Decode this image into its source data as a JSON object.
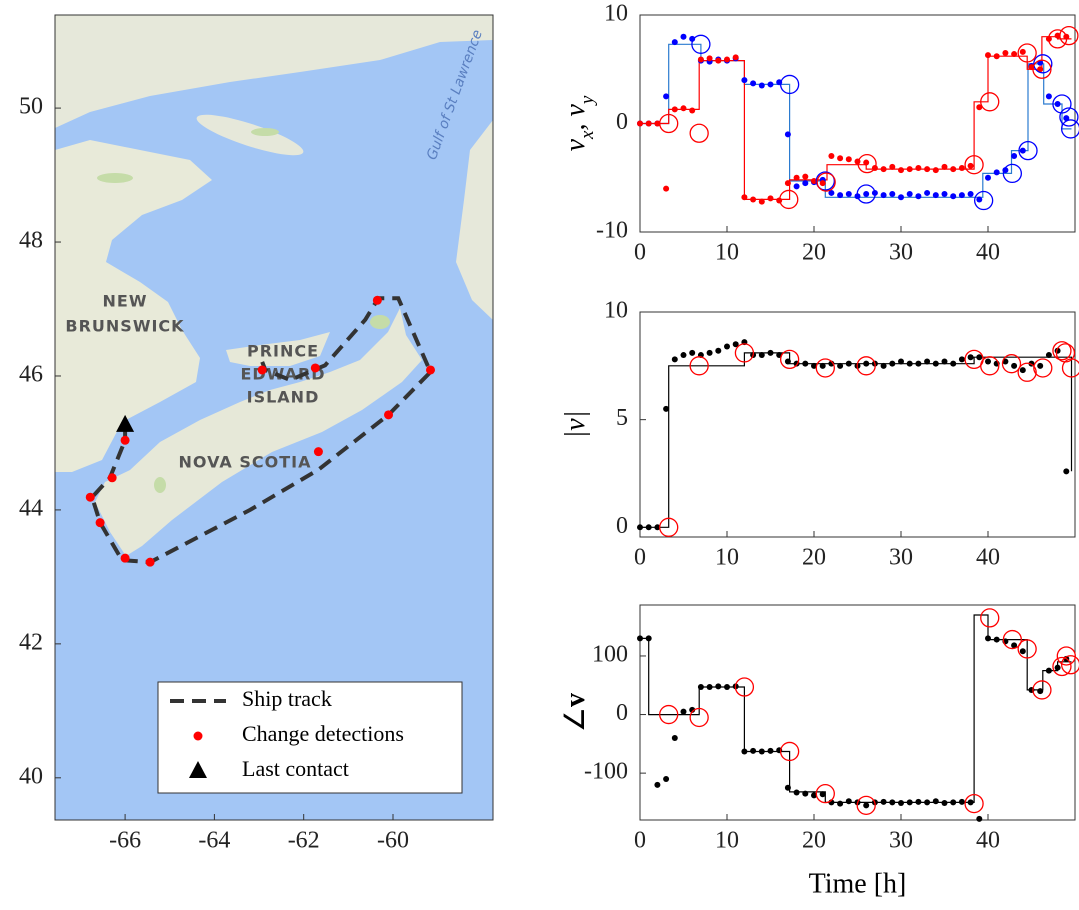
{
  "chart_data": [
    {
      "type": "map",
      "xlim": [
        -67.57,
        -57.76
      ],
      "ylim": [
        39.37,
        51.39
      ],
      "xticks": [
        -66,
        -64,
        -62,
        -60
      ],
      "yticks": [
        40,
        42,
        44,
        46,
        48,
        50
      ],
      "labels": [
        "NEW",
        "BRUNSWICK",
        "PRINCE",
        "EDWARD",
        "ISLAND",
        "NOVA SCOTIA",
        "Gulf of St Lawrence"
      ],
      "legend": "lower right",
      "series": [
        {
          "name": "Ship track",
          "color": "#333333",
          "style": "dashed",
          "x": [
            -66.0,
            -66.0,
            -66.34,
            -66.74,
            -66.56,
            -66.07,
            -65.44,
            -63.2,
            -61.67,
            -60.1,
            -59.16,
            -59.88,
            -60.33,
            -60.62,
            -61.52,
            -62.3,
            -62.86,
            -62.93
          ],
          "values": [
            45.27,
            45.04,
            44.48,
            44.19,
            43.81,
            43.25,
            43.22,
            44.0,
            44.6,
            45.42,
            46.06,
            47.16,
            47.16,
            46.84,
            46.16,
            45.94,
            46.09,
            46.21
          ]
        },
        {
          "name": "Change detections",
          "color": "#ff0000",
          "style": "dot",
          "x": [
            -66.0,
            -66.29,
            -66.78,
            -66.56,
            -66.0,
            -65.44,
            -61.67,
            -60.1,
            -59.16,
            -60.35,
            -61.74,
            -62.93
          ],
          "values": [
            45.04,
            44.48,
            44.19,
            43.81,
            43.28,
            43.22,
            44.87,
            45.42,
            46.09,
            47.13,
            46.12,
            46.09
          ]
        },
        {
          "name": "Last contact",
          "color": "#000000",
          "style": "triangle",
          "x": [
            -66.0
          ],
          "values": [
            45.27
          ]
        }
      ]
    },
    {
      "type": "line",
      "ylabel_parts": [
        "v",
        "x",
        ", v",
        "y"
      ],
      "xlim": [
        0,
        50
      ],
      "ylim": [
        -10,
        10
      ],
      "xticks": [
        0,
        10,
        20,
        30,
        40
      ],
      "yticks": [
        -10,
        0,
        10
      ],
      "series": [
        {
          "style": "line",
          "color": "#2b7bd0",
          "x": [
            0,
            3.3,
            3.3,
            7,
            7,
            12,
            12,
            17.2,
            17.2,
            21.3,
            21.3,
            39.4,
            39.4,
            42.7,
            42.7,
            44.6,
            44.6,
            46.4,
            46.4,
            48.5,
            48.5,
            49.6
          ],
          "values": [
            0,
            0,
            7.3,
            7.3,
            5.8,
            5.8,
            3.6,
            3.6,
            -5.3,
            -5.3,
            -6.8,
            -6.8,
            -4.6,
            -4.6,
            -2.5,
            -2.5,
            5.5,
            5.5,
            1.8,
            1.8,
            -0.5,
            -0.5
          ]
        },
        {
          "style": "line",
          "color": "#ff0000",
          "x": [
            0,
            3.3,
            3.3,
            6.8,
            6.8,
            12,
            12,
            17.2,
            17.2,
            21.5,
            21.5,
            26,
            26,
            38.4,
            38.4,
            40,
            40,
            44.5,
            44.5,
            46.2,
            46.2,
            48,
            48,
            49.6
          ],
          "values": [
            0,
            0,
            1.3,
            1.3,
            5.8,
            5.8,
            -7,
            -7,
            -5.2,
            -5.2,
            -3.8,
            -3.8,
            -4.2,
            -4.2,
            2,
            2,
            6.2,
            6.2,
            5,
            5,
            8,
            8,
            7.8,
            7.8
          ]
        },
        {
          "style": "dot",
          "color": "#0000ff",
          "x": [
            0,
            1,
            2,
            3,
            4,
            5,
            6,
            7,
            8,
            9,
            10,
            11,
            12,
            13,
            14,
            15,
            16,
            17,
            18,
            19,
            20,
            21,
            22,
            23,
            24,
            25,
            26,
            27,
            28,
            29,
            30,
            31,
            32,
            33,
            34,
            35,
            36,
            37,
            38,
            39,
            40,
            41,
            42,
            43,
            44,
            45,
            46,
            47,
            48,
            49
          ],
          "values": [
            0,
            0,
            0,
            2.5,
            7.5,
            8.0,
            7.8,
            5.8,
            5.7,
            5.9,
            5.8,
            6.0,
            4.0,
            3.7,
            3.5,
            3.6,
            3.8,
            -1,
            -5.8,
            -5.5,
            -5.4,
            -5.2,
            -6.4,
            -6.6,
            -6.5,
            -6.7,
            -6.5,
            -6.4,
            -6.6,
            -6.5,
            -6.8,
            -6.5,
            -6.7,
            -6.4,
            -6.6,
            -6.5,
            -6.7,
            -6.6,
            -6.5,
            -7.0,
            -5.0,
            -4.5,
            -4.3,
            -3.0,
            -2.5,
            5.3,
            5.6,
            2.5,
            1.8,
            0.5
          ]
        },
        {
          "style": "dot",
          "color": "#ff0000",
          "x": [
            0,
            1,
            2,
            3,
            4,
            5,
            6,
            7,
            8,
            9,
            10,
            11,
            12,
            13,
            14,
            15,
            16,
            17,
            18,
            19,
            20,
            21,
            22,
            23,
            24,
            25,
            26,
            27,
            28,
            29,
            30,
            31,
            32,
            33,
            34,
            35,
            36,
            37,
            38,
            39,
            40,
            41,
            42,
            43,
            44,
            45,
            46,
            47,
            48,
            49
          ],
          "values": [
            0,
            0,
            0,
            -6,
            1.3,
            1.4,
            1.2,
            5.9,
            6.0,
            5.8,
            5.9,
            6.1,
            -6.8,
            -7.0,
            -7.2,
            -6.9,
            -7.1,
            -5.5,
            -5.0,
            -4.9,
            -5.3,
            -5.5,
            -3.0,
            -3.2,
            -3.3,
            -3.5,
            -3.6,
            -4.1,
            -4.2,
            -4.0,
            -4.3,
            -4.2,
            -4.1,
            -4.2,
            -4.3,
            -4.0,
            -4.2,
            -4.1,
            -3.9,
            1.5,
            6.3,
            6.2,
            6.5,
            6.4,
            6.6,
            5.2,
            5.0,
            7.8,
            8.1,
            8.0
          ]
        },
        {
          "style": "circle",
          "color": "#0000ff",
          "x": [
            7,
            17.2,
            21.3,
            26,
            39.5,
            42.8,
            44.6,
            46.3,
            48.5,
            49.3,
            49.5
          ],
          "values": [
            7.3,
            3.6,
            -5.3,
            -6.5,
            -7.1,
            -4.6,
            -2.5,
            5.5,
            1.8,
            0.6,
            -0.5
          ]
        },
        {
          "style": "circle",
          "color": "#ff0000",
          "x": [
            3.3,
            6.8,
            17.1,
            21.4,
            26.1,
            38.4,
            40.2,
            44.5,
            46.2,
            48,
            49.3
          ],
          "values": [
            0,
            -0.9,
            -7.0,
            -5.4,
            -3.7,
            -3.8,
            2.0,
            6.5,
            5.0,
            7.8,
            8.1
          ]
        }
      ]
    },
    {
      "type": "line",
      "ylabel_parts": [
        "|v|"
      ],
      "xlim": [
        0,
        50
      ],
      "ylim": [
        -0.45,
        10
      ],
      "xticks": [
        0,
        10,
        20,
        30,
        40
      ],
      "yticks": [
        0,
        5,
        10
      ],
      "series": [
        {
          "style": "line",
          "color": "#000000",
          "x": [
            0,
            3.3,
            3.3,
            12,
            12,
            17.2,
            17.2,
            38.4,
            38.4,
            49.6,
            49.6
          ],
          "values": [
            0,
            0,
            7.5,
            7.5,
            8.1,
            8.1,
            7.6,
            7.6,
            7.9,
            7.9,
            2.6
          ]
        },
        {
          "style": "dot",
          "color": "#000000",
          "x": [
            0,
            1,
            2,
            3,
            4,
            5,
            6,
            7,
            8,
            9,
            10,
            11,
            12,
            13,
            14,
            15,
            16,
            17,
            18,
            19,
            20,
            21,
            22,
            23,
            24,
            25,
            26,
            27,
            28,
            29,
            30,
            31,
            32,
            33,
            34,
            35,
            36,
            37,
            38,
            39,
            40,
            41,
            42,
            43,
            44,
            45,
            46,
            47,
            48,
            49
          ],
          "values": [
            0,
            0,
            0,
            5.5,
            7.8,
            8.0,
            8.1,
            8.0,
            8.1,
            8.2,
            8.4,
            8.5,
            8.6,
            8.0,
            8.0,
            8.1,
            8.0,
            7.7,
            7.6,
            7.6,
            7.5,
            7.5,
            7.6,
            7.5,
            7.6,
            7.5,
            7.6,
            7.6,
            7.5,
            7.6,
            7.7,
            7.6,
            7.6,
            7.7,
            7.6,
            7.7,
            7.6,
            7.8,
            7.9,
            7.9,
            7.7,
            7.6,
            7.7,
            7.5,
            7.3,
            7.6,
            7.5,
            8.0,
            8.2,
            2.6
          ]
        },
        {
          "style": "circle",
          "color": "#ff0000",
          "x": [
            3.3,
            6.8,
            12,
            17.2,
            21.3,
            26,
            38.4,
            40.2,
            42.7,
            44.5,
            46.3,
            48.5,
            48.9,
            49.6
          ],
          "values": [
            0,
            7.5,
            8.1,
            7.8,
            7.4,
            7.5,
            7.8,
            7.5,
            7.6,
            7.2,
            7.4,
            8.2,
            8.1,
            7.4
          ]
        }
      ]
    },
    {
      "type": "line",
      "ylabel_parts": [
        "∠",
        "v"
      ],
      "xlabel": "Time [h]",
      "xlim": [
        0,
        50
      ],
      "ylim": [
        -180,
        187
      ],
      "xticks": [
        0,
        10,
        20,
        30,
        40
      ],
      "yticks": [
        -100,
        0,
        100
      ],
      "series": [
        {
          "style": "line",
          "color": "#000000",
          "x": [
            0,
            1,
            1,
            6.8,
            6.8,
            12,
            12,
            17.2,
            17.2,
            21.3,
            21.3,
            38.4,
            38.4,
            40,
            40,
            44.5,
            44.5,
            46.3,
            46.3,
            48,
            48,
            49.6
          ],
          "values": [
            130,
            130,
            0,
            0,
            47,
            47,
            -63,
            -63,
            -132,
            -132,
            -150,
            -150,
            170,
            170,
            128,
            128,
            42,
            42,
            75,
            75,
            90,
            90
          ]
        },
        {
          "style": "dot",
          "color": "#000000",
          "x": [
            0,
            1,
            2,
            3,
            4,
            5,
            6,
            7,
            8,
            9,
            10,
            11,
            12,
            13,
            14,
            15,
            16,
            17,
            18,
            19,
            20,
            21,
            22,
            23,
            24,
            25,
            26,
            27,
            28,
            29,
            30,
            31,
            32,
            33,
            34,
            35,
            36,
            37,
            38,
            39,
            40,
            41,
            42,
            43,
            44,
            45,
            46,
            47,
            48,
            49
          ],
          "values": [
            130,
            130,
            -120,
            -110,
            -40,
            5,
            8,
            47,
            47,
            48,
            47,
            48,
            -63,
            -62,
            -63,
            -62,
            -61,
            -125,
            -133,
            -135,
            -138,
            -136,
            -150,
            -152,
            -148,
            -150,
            -155,
            -150,
            -149,
            -150,
            -151,
            -150,
            -149,
            -150,
            -148,
            -151,
            -150,
            -149,
            -150,
            -178,
            130,
            128,
            125,
            118,
            108,
            42,
            40,
            75,
            80,
            95
          ]
        },
        {
          "style": "circle",
          "color": "#ff0000",
          "x": [
            3.3,
            6.8,
            12,
            17.2,
            21.3,
            26,
            38.4,
            40.2,
            42.8,
            44.5,
            46.2,
            48.5,
            49,
            49.5
          ],
          "values": [
            0,
            -5,
            47,
            -63,
            -135,
            -155,
            -152,
            165,
            128,
            112,
            42,
            82,
            100,
            85
          ]
        }
      ]
    }
  ]
}
